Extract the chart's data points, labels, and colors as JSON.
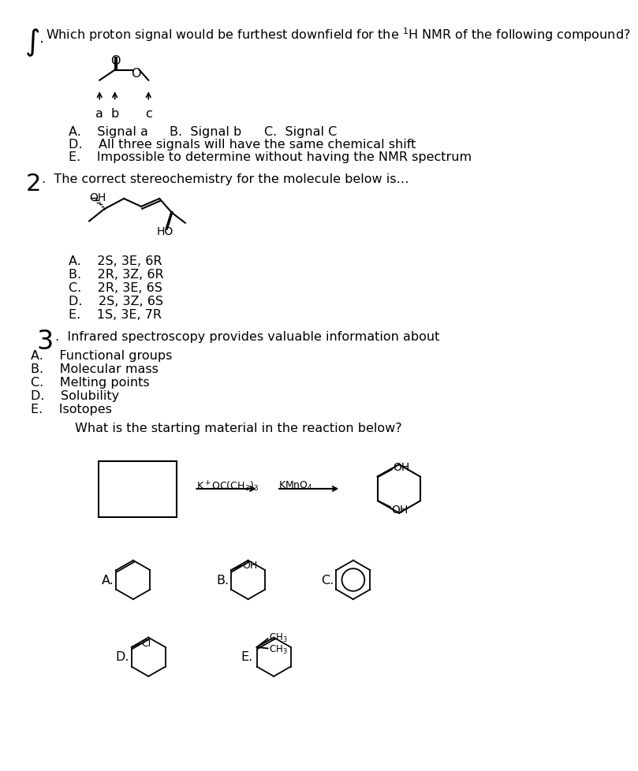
{
  "bg_color": "#ffffff",
  "text_color": "#000000",
  "fs": 11.5,
  "fs_sm": 10.0,
  "q1_line1": "Which proton signal would be furthest downfield for the $^1$H NMR of the following compound?",
  "q2_line": ".  The correct stereochemistry for the molecule below is…",
  "q3_line": ".  Infrared spectroscopy provides valuable information about",
  "q4_line": "What is the starting material in the reaction below?",
  "q1_answers": [
    "A.    Signal a",
    "B.  Signal b",
    "C.  Signal C",
    "D.    All three signals will have the same chemical shift",
    "E.    Impossible to determine without having the NMR spectrum"
  ],
  "q2_answers": [
    "A.    2S, 3E, 6R",
    "B.    2R, 3Z, 6R",
    "C.    2R, 3E, 6S",
    "D.    2S, 3Z, 6S",
    "E.    1S, 3E, 7R"
  ],
  "q3_answers": [
    "A.    Functional groups",
    "B.    Molecular mass",
    "C.    Melting points",
    "D.    Solubility",
    "E.    Isotopes"
  ]
}
